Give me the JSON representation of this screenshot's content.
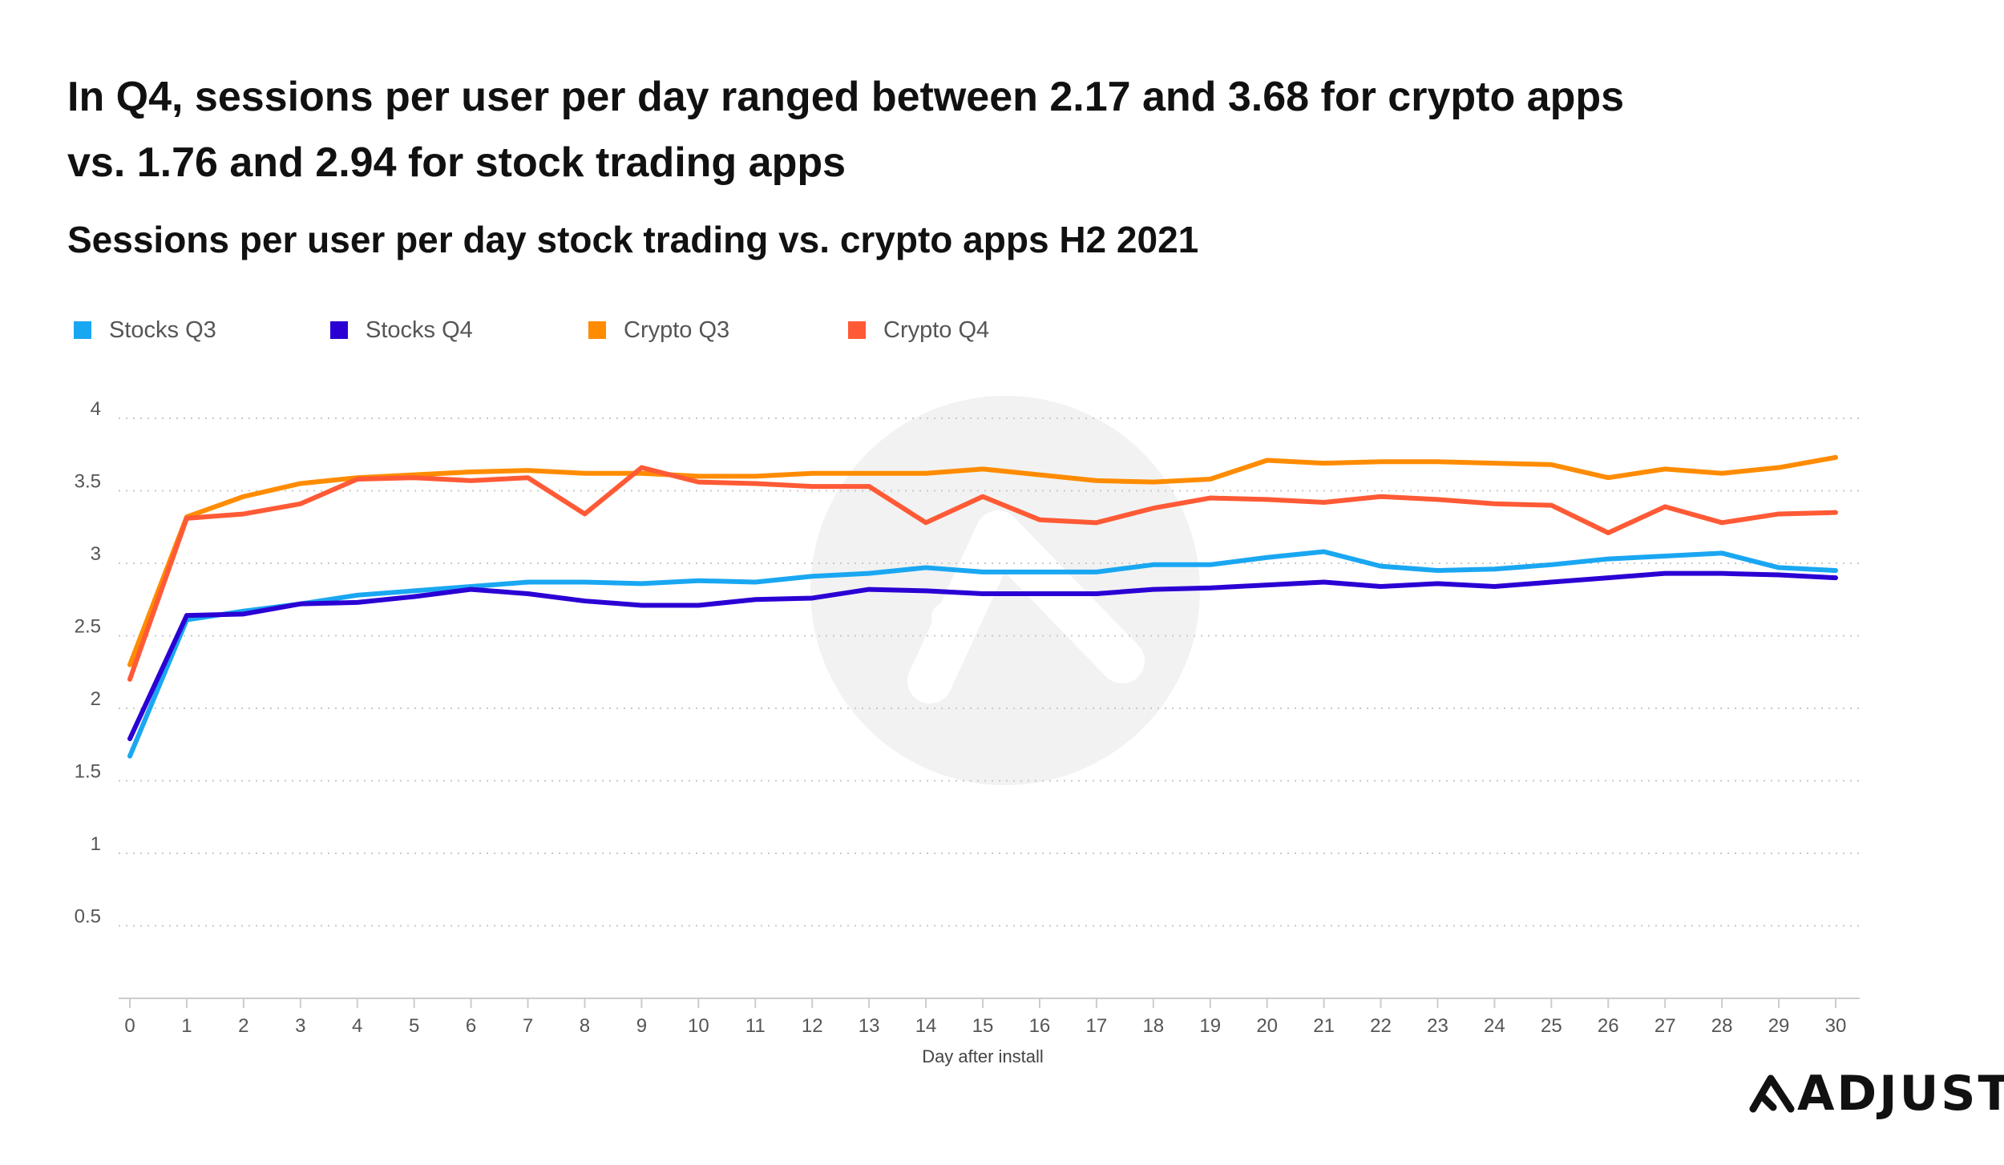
{
  "headline": {
    "line1": "In Q4, sessions per user per day ranged between 2.17 and 3.68 for crypto apps",
    "line2": "vs. 1.76 and 2.94 for stock trading apps"
  },
  "brand": {
    "name": "ADJUST"
  },
  "chart_data": {
    "type": "line",
    "title": "Sessions per user per day stock trading vs. crypto apps H2 2021",
    "xlabel": "Day after install",
    "ylabel": "",
    "x": [
      0,
      1,
      2,
      3,
      4,
      5,
      6,
      7,
      8,
      9,
      10,
      11,
      12,
      13,
      14,
      15,
      16,
      17,
      18,
      19,
      20,
      21,
      22,
      23,
      24,
      25,
      26,
      27,
      28,
      29,
      30
    ],
    "xlim": [
      0,
      30
    ],
    "ylim": [
      0,
      4
    ],
    "yticks": [
      0.5,
      1,
      1.5,
      2,
      2.5,
      3,
      3.5,
      4
    ],
    "ytick_labels": [
      "0.5",
      "1",
      "1.5",
      "2",
      "2.5",
      "3",
      "3.5",
      "4"
    ],
    "xtick_labels": [
      "0",
      "1",
      "2",
      "3",
      "4",
      "5",
      "6",
      "7",
      "8",
      "9",
      "10",
      "11",
      "12",
      "13",
      "14",
      "15",
      "16",
      "17",
      "18",
      "19",
      "20",
      "21",
      "22",
      "23",
      "24",
      "25",
      "26",
      "27",
      "28",
      "29",
      "30"
    ],
    "grid": "horizontal dotted",
    "legend_position": "top-left",
    "series": [
      {
        "name": "Stocks Q3",
        "color": "#1aa7f2",
        "values": [
          1.67,
          2.61,
          2.67,
          2.72,
          2.78,
          2.81,
          2.84,
          2.87,
          2.87,
          2.86,
          2.88,
          2.87,
          2.91,
          2.93,
          2.97,
          2.94,
          2.94,
          2.94,
          2.99,
          2.99,
          3.04,
          3.08,
          2.98,
          2.95,
          2.96,
          2.99,
          3.03,
          3.05,
          3.07,
          2.97,
          2.95
        ]
      },
      {
        "name": "Stocks Q4",
        "color": "#2b00d4",
        "values": [
          1.79,
          2.64,
          2.65,
          2.72,
          2.73,
          2.77,
          2.82,
          2.79,
          2.74,
          2.71,
          2.71,
          2.75,
          2.76,
          2.82,
          2.81,
          2.79,
          2.79,
          2.79,
          2.82,
          2.83,
          2.85,
          2.87,
          2.84,
          2.86,
          2.84,
          2.87,
          2.9,
          2.93,
          2.93,
          2.92,
          2.9
        ]
      },
      {
        "name": "Crypto Q3",
        "color": "#ff8c00",
        "values": [
          2.3,
          3.32,
          3.46,
          3.55,
          3.59,
          3.61,
          3.63,
          3.64,
          3.62,
          3.62,
          3.6,
          3.6,
          3.62,
          3.62,
          3.62,
          3.65,
          3.61,
          3.57,
          3.56,
          3.58,
          3.71,
          3.69,
          3.7,
          3.7,
          3.69,
          3.68,
          3.59,
          3.65,
          3.62,
          3.66,
          3.73
        ]
      },
      {
        "name": "Crypto Q4",
        "color": "#ff5a36",
        "values": [
          2.2,
          3.31,
          3.34,
          3.41,
          3.58,
          3.59,
          3.57,
          3.59,
          3.34,
          3.66,
          3.56,
          3.55,
          3.53,
          3.53,
          3.28,
          3.46,
          3.3,
          3.28,
          3.38,
          3.45,
          3.44,
          3.42,
          3.46,
          3.44,
          3.41,
          3.4,
          3.21,
          3.39,
          3.28,
          3.34,
          3.35
        ]
      }
    ]
  }
}
